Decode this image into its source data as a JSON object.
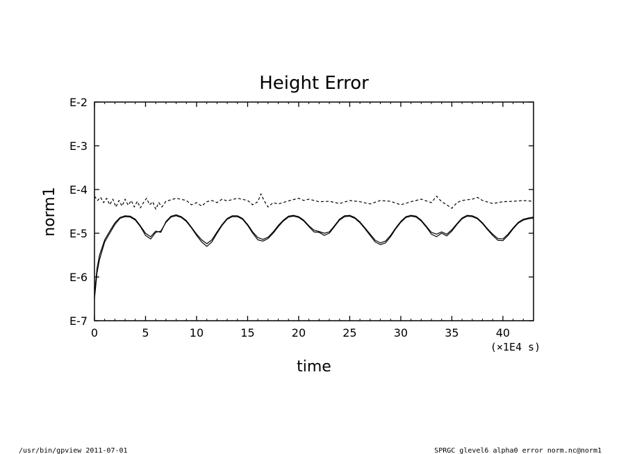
{
  "chart_data": {
    "type": "line",
    "title": "Height Error",
    "xlabel": "time",
    "ylabel": "norm1",
    "x_unit": "(×1E4 s)",
    "xlim": [
      0,
      43
    ],
    "ylim": [
      -7,
      -2
    ],
    "y_scale": "log10",
    "xticks": [
      0,
      5,
      10,
      15,
      20,
      25,
      30,
      35,
      40
    ],
    "xtick_labels": [
      "0",
      "5",
      "10",
      "15",
      "20",
      "25",
      "30",
      "35",
      "40"
    ],
    "yticks": [
      -2,
      -3,
      -4,
      -5,
      -6,
      -7
    ],
    "ytick_labels": [
      "E-2",
      "E-3",
      "E-4",
      "E-5",
      "E-6",
      "E-7"
    ],
    "grid": false,
    "legend": "none",
    "series": [
      {
        "style": "solid",
        "x": [
          0,
          0.25,
          0.5,
          1,
          1.5,
          2,
          2.5,
          3,
          3.5,
          4,
          4.5,
          5,
          5.5,
          6,
          6.5,
          7,
          7.5,
          8,
          8.5,
          9,
          9.5,
          10,
          10.5,
          11,
          11.5,
          12,
          12.5,
          13,
          13.5,
          14,
          14.5,
          15,
          15.5,
          16,
          16.5,
          17,
          17.5,
          18,
          18.5,
          19,
          19.5,
          20,
          20.5,
          21,
          21.5,
          22,
          22.5,
          23,
          23.5,
          24,
          24.5,
          25,
          25.5,
          26,
          26.5,
          27,
          27.5,
          28,
          28.5,
          29,
          29.5,
          30,
          30.5,
          31,
          31.5,
          32,
          32.5,
          33,
          33.5,
          34,
          34.5,
          35,
          35.5,
          36,
          36.5,
          37,
          37.5,
          38,
          38.5,
          39,
          39.5,
          40,
          40.5,
          41,
          41.5,
          42,
          42.5,
          43
        ],
        "y": [
          -6.5,
          -5.9,
          -5.6,
          -5.2,
          -5.0,
          -4.8,
          -4.66,
          -4.62,
          -4.63,
          -4.7,
          -4.85,
          -5.05,
          -5.13,
          -4.98,
          -4.95,
          -4.75,
          -4.63,
          -4.6,
          -4.64,
          -4.73,
          -4.88,
          -5.05,
          -5.2,
          -5.3,
          -5.2,
          -5.0,
          -4.82,
          -4.68,
          -4.62,
          -4.62,
          -4.68,
          -4.82,
          -5.0,
          -5.15,
          -5.18,
          -5.12,
          -5.0,
          -4.85,
          -4.72,
          -4.63,
          -4.61,
          -4.64,
          -4.72,
          -4.85,
          -4.97,
          -4.98,
          -5.05,
          -5.0,
          -4.85,
          -4.7,
          -4.62,
          -4.61,
          -4.66,
          -4.76,
          -4.9,
          -5.05,
          -5.2,
          -5.26,
          -5.22,
          -5.08,
          -4.9,
          -4.75,
          -4.64,
          -4.61,
          -4.63,
          -4.72,
          -4.86,
          -5.02,
          -5.08,
          -5.0,
          -5.06,
          -4.95,
          -4.8,
          -4.67,
          -4.61,
          -4.62,
          -4.67,
          -4.78,
          -4.92,
          -5.05,
          -5.16,
          -5.17,
          -5.05,
          -4.9,
          -4.77,
          -4.7,
          -4.67,
          -4.65
        ]
      },
      {
        "style": "solid",
        "x": [
          0,
          0.25,
          0.5,
          1,
          1.5,
          2,
          2.5,
          3,
          3.5,
          4,
          4.5,
          5,
          5.5,
          6,
          6.5,
          7,
          7.5,
          8,
          8.5,
          9,
          9.5,
          10,
          10.5,
          11,
          11.5,
          12,
          12.5,
          13,
          13.5,
          14,
          14.5,
          15,
          15.5,
          16,
          16.5,
          17,
          17.5,
          18,
          18.5,
          19,
          19.5,
          20,
          20.5,
          21,
          21.5,
          22,
          22.5,
          23,
          23.5,
          24,
          24.5,
          25,
          25.5,
          26,
          26.5,
          27,
          27.5,
          28,
          28.5,
          29,
          29.5,
          30,
          30.5,
          31,
          31.5,
          32,
          32.5,
          33,
          33.5,
          34,
          34.5,
          35,
          35.5,
          36,
          36.5,
          37,
          37.5,
          38,
          38.5,
          39,
          39.5,
          40,
          40.5,
          41,
          41.5,
          42,
          42.5,
          43
        ],
        "y": [
          -6.4,
          -5.8,
          -5.5,
          -5.15,
          -4.95,
          -4.76,
          -4.64,
          -4.6,
          -4.61,
          -4.68,
          -4.83,
          -5.0,
          -5.08,
          -4.95,
          -4.98,
          -4.73,
          -4.61,
          -4.58,
          -4.62,
          -4.71,
          -4.86,
          -5.02,
          -5.15,
          -5.24,
          -5.15,
          -4.97,
          -4.8,
          -4.66,
          -4.6,
          -4.6,
          -4.66,
          -4.8,
          -4.97,
          -5.1,
          -5.14,
          -5.09,
          -4.97,
          -4.82,
          -4.7,
          -4.61,
          -4.59,
          -4.62,
          -4.7,
          -4.83,
          -4.93,
          -4.96,
          -5.0,
          -4.97,
          -4.83,
          -4.68,
          -4.6,
          -4.59,
          -4.64,
          -4.74,
          -4.88,
          -5.02,
          -5.16,
          -5.22,
          -5.18,
          -5.05,
          -4.88,
          -4.73,
          -4.62,
          -4.59,
          -4.61,
          -4.7,
          -4.84,
          -4.98,
          -5.02,
          -4.97,
          -5.02,
          -4.92,
          -4.78,
          -4.65,
          -4.59,
          -4.6,
          -4.65,
          -4.76,
          -4.9,
          -5.02,
          -5.12,
          -5.13,
          -5.02,
          -4.88,
          -4.75,
          -4.68,
          -4.65,
          -4.63
        ]
      },
      {
        "style": "dashed",
        "x": [
          0,
          0.3,
          0.6,
          0.9,
          1.2,
          1.5,
          1.8,
          2.1,
          2.4,
          2.7,
          3.0,
          3.3,
          3.6,
          3.9,
          4.2,
          4.5,
          4.8,
          5.1,
          5.4,
          5.7,
          6.0,
          6.3,
          6.6,
          7,
          8,
          9,
          9.5,
          10,
          10.5,
          11,
          11.5,
          12,
          12.5,
          13,
          14,
          15,
          15.5,
          16,
          16.3,
          16.6,
          17,
          17.5,
          18,
          19,
          20,
          20.5,
          21,
          22,
          23,
          24,
          25,
          26,
          27,
          28,
          29,
          30,
          31,
          32,
          33,
          33.5,
          34,
          34.5,
          35,
          35.5,
          36,
          37,
          37.5,
          38,
          39,
          40,
          41,
          42,
          43
        ],
        "y": [
          -4.15,
          -4.25,
          -4.18,
          -4.3,
          -4.2,
          -4.35,
          -4.22,
          -4.4,
          -4.25,
          -4.38,
          -4.22,
          -4.36,
          -4.25,
          -4.4,
          -4.27,
          -4.42,
          -4.3,
          -4.2,
          -4.35,
          -4.28,
          -4.45,
          -4.3,
          -4.4,
          -4.27,
          -4.2,
          -4.25,
          -4.35,
          -4.3,
          -4.38,
          -4.28,
          -4.25,
          -4.3,
          -4.22,
          -4.26,
          -4.2,
          -4.25,
          -4.35,
          -4.28,
          -4.1,
          -4.25,
          -4.4,
          -4.3,
          -4.33,
          -4.26,
          -4.2,
          -4.25,
          -4.22,
          -4.28,
          -4.27,
          -4.32,
          -4.25,
          -4.28,
          -4.33,
          -4.25,
          -4.27,
          -4.35,
          -4.28,
          -4.22,
          -4.3,
          -4.15,
          -4.28,
          -4.35,
          -4.43,
          -4.3,
          -4.25,
          -4.22,
          -4.18,
          -4.25,
          -4.32,
          -4.28,
          -4.27,
          -4.25,
          -4.27
        ]
      }
    ]
  },
  "footer": {
    "left": "/usr/bin/gpview   2011-07-01",
    "right": "SPRGC_glevel6_alpha0_error_norm.nc@norm1"
  }
}
